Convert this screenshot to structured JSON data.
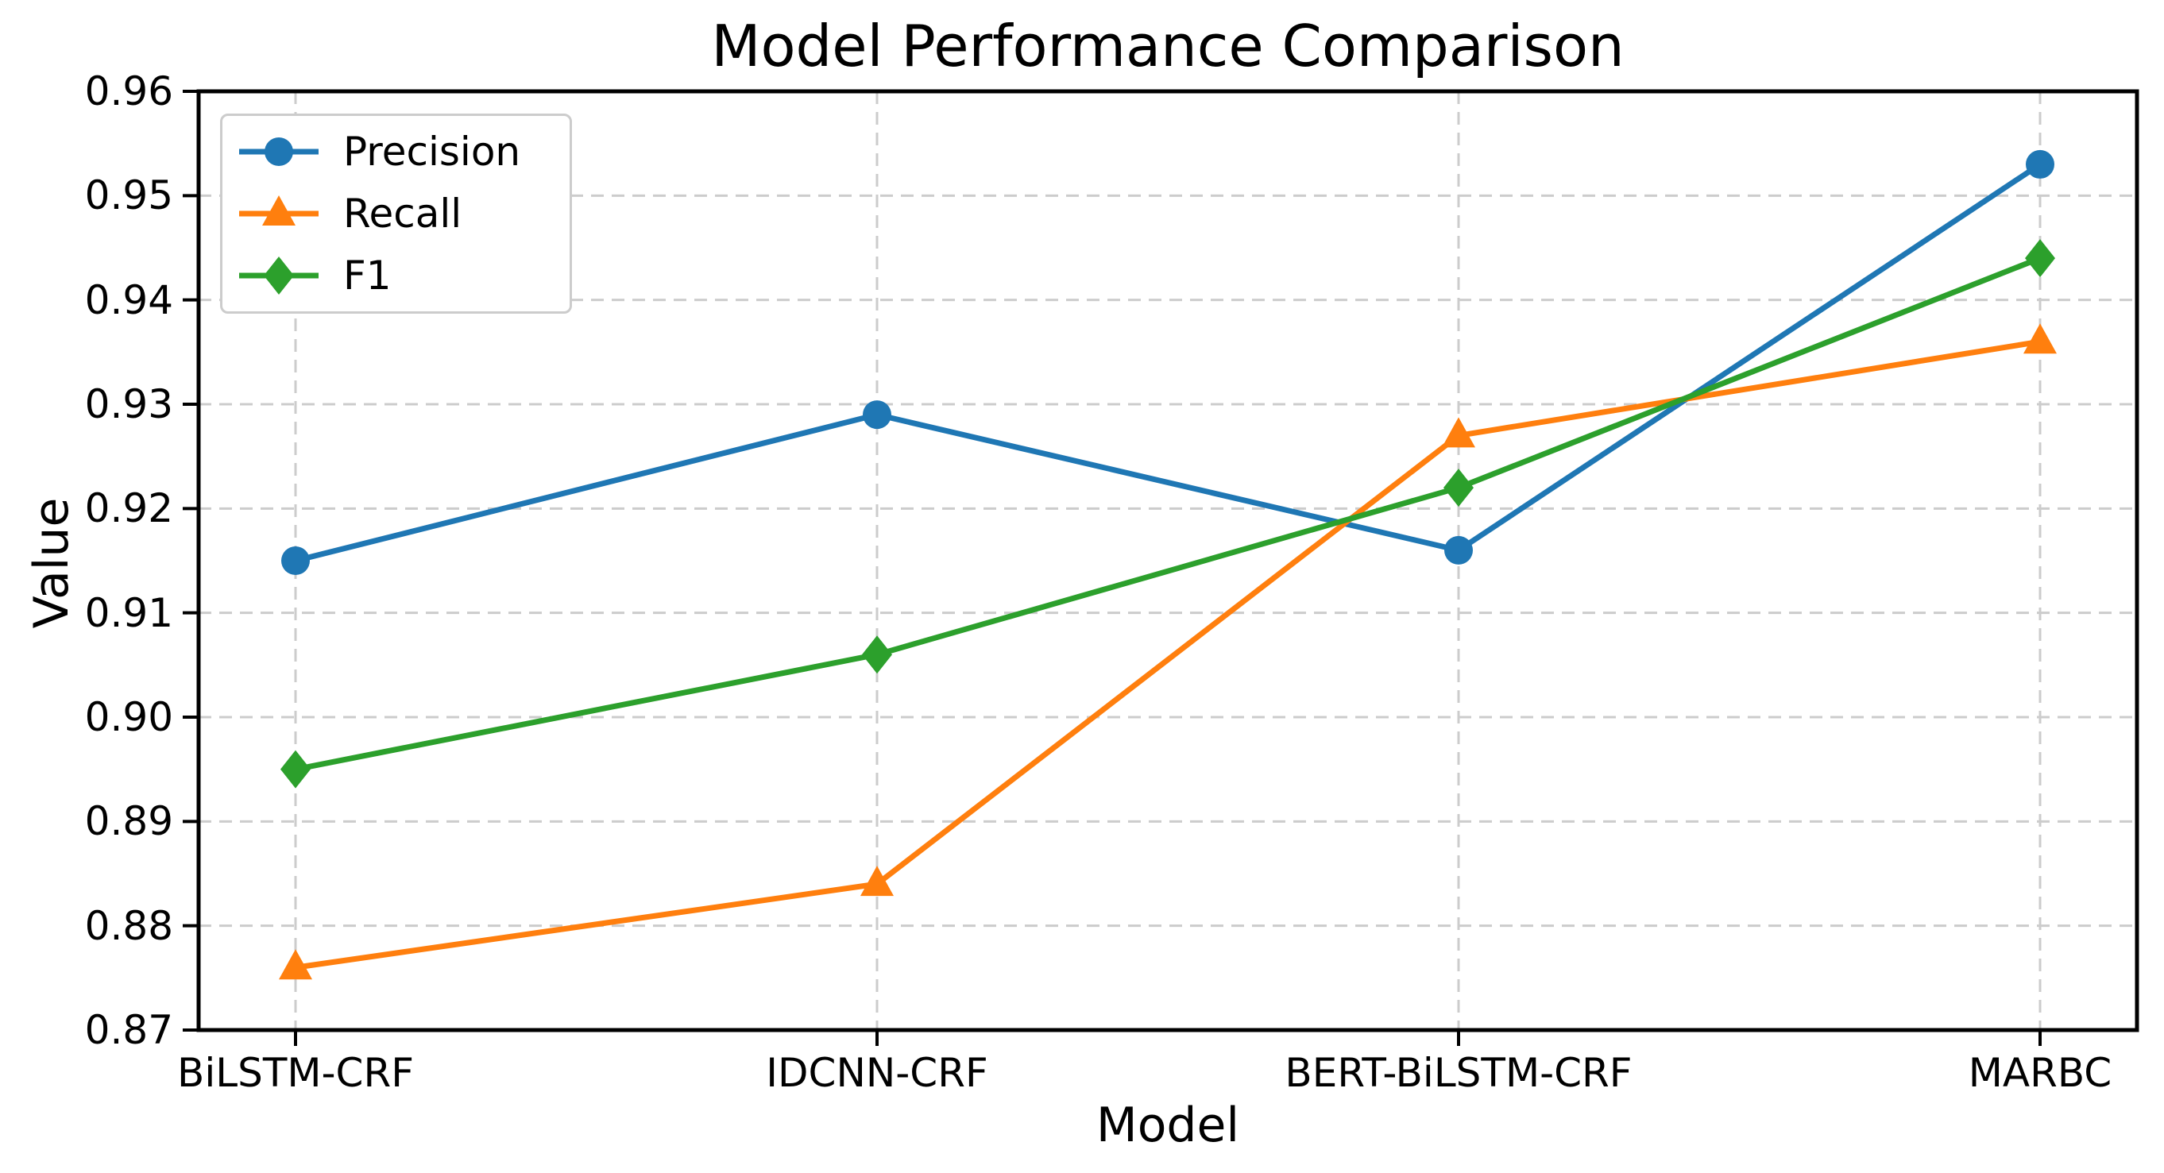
{
  "chart_data": {
    "type": "line",
    "title": "Model Performance Comparison",
    "xlabel": "Model",
    "ylabel": "Value",
    "categories": [
      "BiLSTM-CRF",
      "IDCNN-CRF",
      "BERT-BiLSTM-CRF",
      "MARBC"
    ],
    "series": [
      {
        "name": "Precision",
        "marker": "circle",
        "color": "#1f77b4",
        "values": [
          0.915,
          0.929,
          0.916,
          0.953
        ]
      },
      {
        "name": "Recall",
        "marker": "triangle",
        "color": "#ff7f0e",
        "values": [
          0.876,
          0.884,
          0.927,
          0.936
        ]
      },
      {
        "name": "F1",
        "marker": "diamond",
        "color": "#2ca02c",
        "values": [
          0.895,
          0.906,
          0.922,
          0.944
        ]
      }
    ],
    "ylim": [
      0.87,
      0.96
    ],
    "ytick_labels": [
      "0.87",
      "0.88",
      "0.89",
      "0.90",
      "0.91",
      "0.92",
      "0.93",
      "0.94",
      "0.95",
      "0.96"
    ],
    "grid": true,
    "grid_style": "dashed",
    "grid_color": "#cccccc",
    "spine_color": "#000000",
    "legend_position": "upper left"
  }
}
